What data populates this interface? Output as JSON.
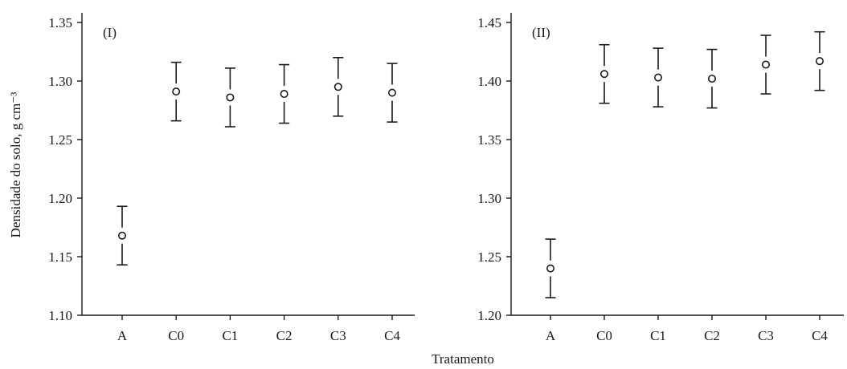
{
  "chart_data": [
    {
      "type": "scatter",
      "panel_label": "(I)",
      "categories": [
        "A",
        "C0",
        "C1",
        "C2",
        "C3",
        "C4"
      ],
      "values": [
        1.168,
        1.291,
        1.286,
        1.289,
        1.295,
        1.29
      ],
      "error": [
        0.025,
        0.025,
        0.025,
        0.025,
        0.025,
        0.025
      ],
      "ylim": [
        1.1,
        1.35
      ],
      "yticks": [
        "1.10",
        "1.15",
        "1.20",
        "1.25",
        "1.30",
        "1.35"
      ],
      "ylabel": "Densidade do solo, g cm⁻³",
      "xlabel": "Tratamento",
      "grid": false
    },
    {
      "type": "scatter",
      "panel_label": "(II)",
      "categories": [
        "A",
        "C0",
        "C1",
        "C2",
        "C3",
        "C4"
      ],
      "values": [
        1.24,
        1.406,
        1.403,
        1.402,
        1.414,
        1.417
      ],
      "error": [
        0.025,
        0.025,
        0.025,
        0.025,
        0.025,
        0.025
      ],
      "ylim": [
        1.2,
        1.45
      ],
      "yticks": [
        "1.20",
        "1.25",
        "1.30",
        "1.35",
        "1.40",
        "1.45"
      ],
      "ylabel": "",
      "xlabel": "Tratamento",
      "grid": false
    }
  ]
}
